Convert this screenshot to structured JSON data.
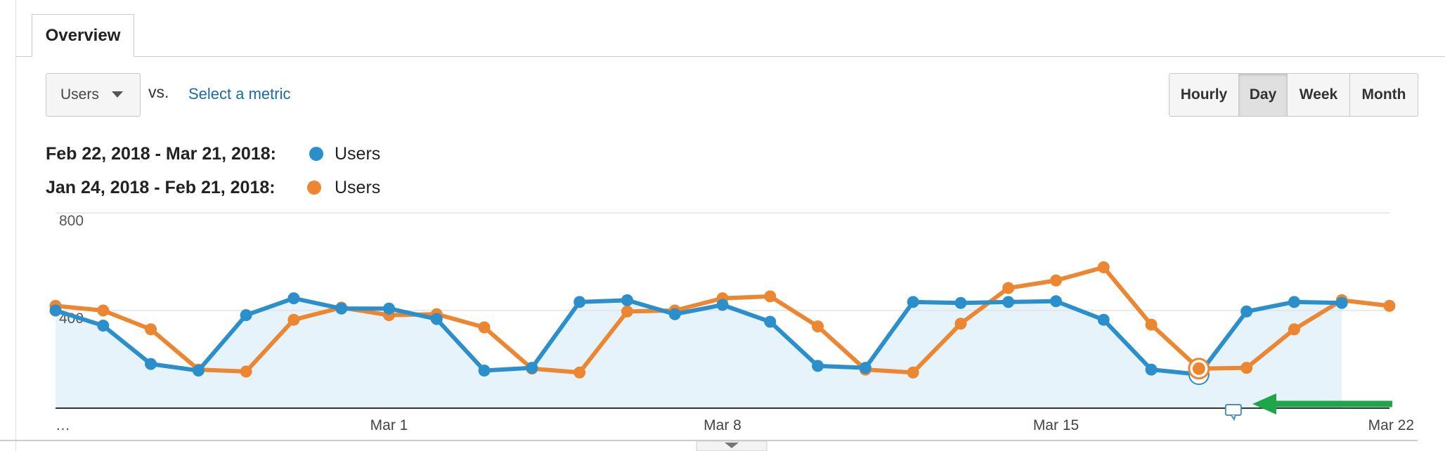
{
  "tab": "Overview",
  "controls": {
    "metric": "Users",
    "vs": "vs.",
    "select_metric": "Select a metric",
    "granularity": [
      "Hourly",
      "Day",
      "Week",
      "Month"
    ],
    "selected": 1
  },
  "chart_data": {
    "type": "line",
    "categories": [
      "…",
      null,
      null,
      null,
      null,
      null,
      null,
      "Mar 1",
      null,
      null,
      null,
      null,
      null,
      null,
      "Mar 8",
      null,
      null,
      null,
      null,
      null,
      null,
      "Mar 15",
      null,
      null,
      null,
      null,
      null,
      null,
      "Mar 22"
    ],
    "series": [
      {
        "name": "Users",
        "range": "Feb 22, 2018 - Mar 21, 2018:",
        "color": "#2a8fcb",
        "area": true,
        "values": [
          400,
          338,
          181,
          154,
          381,
          450,
          408,
          408,
          365,
          154,
          165,
          435,
          442,
          385,
          423,
          354,
          173,
          165,
          435,
          431,
          435,
          438,
          362,
          158,
          138,
          396,
          435,
          431,
          null
        ]
      },
      {
        "name": "Users",
        "range": "Jan 24, 2018 - Feb 21, 2018:",
        "color": "#ec8630",
        "area": false,
        "values": [
          419,
          400,
          323,
          158,
          150,
          362,
          412,
          381,
          385,
          331,
          162,
          146,
          396,
          400,
          450,
          458,
          335,
          158,
          146,
          346,
          492,
          523,
          577,
          342,
          162,
          165,
          323,
          442,
          419
        ]
      }
    ],
    "ylim": [
      0,
      800
    ],
    "yticks": [
      400,
      800
    ],
    "grid": true
  }
}
